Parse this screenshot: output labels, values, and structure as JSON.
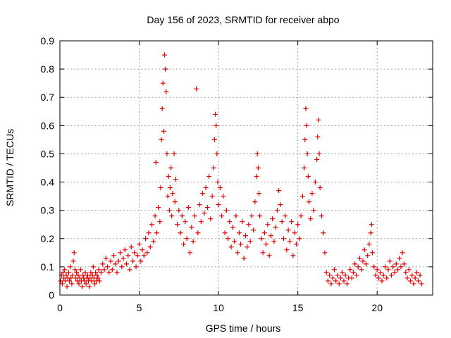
{
  "chart_data": {
    "type": "scatter",
    "title": "Day 156 of 2023, SRMTID for receiver abpo",
    "xlabel": "GPS time / hours",
    "ylabel": "SRMTID / TECUs",
    "xlim": [
      0,
      23.5
    ],
    "ylim": [
      0,
      0.9
    ],
    "xticks": [
      0,
      5,
      10,
      15,
      20
    ],
    "xtick_labels": [
      "0",
      "5",
      "10",
      "15",
      "20"
    ],
    "yticks": [
      0,
      0.1,
      0.2,
      0.3,
      0.4,
      0.5,
      0.6,
      0.7,
      0.8,
      0.9
    ],
    "ytick_labels": [
      "0",
      "0.1",
      "0.2",
      "0.3",
      "0.4",
      "0.5",
      "0.6",
      "0.7",
      "0.8",
      "0.9"
    ],
    "grid": true,
    "marker": "plus",
    "color": "#e00000",
    "series": [
      {
        "name": "SRMTID",
        "points": [
          [
            0.05,
            0.05
          ],
          [
            0.1,
            0.07
          ],
          [
            0.15,
            0.04
          ],
          [
            0.2,
            0.08
          ],
          [
            0.25,
            0.06
          ],
          [
            0.3,
            0.09
          ],
          [
            0.35,
            0.05
          ],
          [
            0.4,
            0.07
          ],
          [
            0.45,
            0.03
          ],
          [
            0.5,
            0.06
          ],
          [
            0.55,
            0.08
          ],
          [
            0.6,
            0.05
          ],
          [
            0.65,
            0.1
          ],
          [
            0.7,
            0.06
          ],
          [
            0.75,
            0.04
          ],
          [
            0.8,
            0.07
          ],
          [
            0.85,
            0.12
          ],
          [
            0.9,
            0.15
          ],
          [
            0.95,
            0.09
          ],
          [
            1.0,
            0.06
          ],
          [
            1.05,
            0.08
          ],
          [
            1.1,
            0.05
          ],
          [
            1.15,
            0.07
          ],
          [
            1.2,
            0.04
          ],
          [
            1.25,
            0.06
          ],
          [
            1.3,
            0.09
          ],
          [
            1.35,
            0.05
          ],
          [
            1.4,
            0.03
          ],
          [
            1.45,
            0.07
          ],
          [
            1.5,
            0.06
          ],
          [
            1.55,
            0.05
          ],
          [
            1.6,
            0.08
          ],
          [
            1.65,
            0.04
          ],
          [
            1.7,
            0.06
          ],
          [
            1.75,
            0.07
          ],
          [
            1.8,
            0.05
          ],
          [
            1.85,
            0.03
          ],
          [
            1.9,
            0.06
          ],
          [
            1.95,
            0.08
          ],
          [
            2.0,
            0.05
          ],
          [
            2.05,
            0.07
          ],
          [
            2.1,
            0.1
          ],
          [
            2.15,
            0.06
          ],
          [
            2.2,
            0.04
          ],
          [
            2.25,
            0.08
          ],
          [
            2.3,
            0.05
          ],
          [
            2.35,
            0.07
          ],
          [
            2.4,
            0.06
          ],
          [
            2.45,
            0.09
          ],
          [
            2.5,
            0.05
          ],
          [
            2.6,
            0.08
          ],
          [
            2.7,
            0.11
          ],
          [
            2.8,
            0.09
          ],
          [
            2.9,
            0.13
          ],
          [
            3.0,
            0.1
          ],
          [
            3.1,
            0.08
          ],
          [
            3.2,
            0.12
          ],
          [
            3.3,
            0.09
          ],
          [
            3.4,
            0.14
          ],
          [
            3.5,
            0.11
          ],
          [
            3.6,
            0.08
          ],
          [
            3.7,
            0.12
          ],
          [
            3.8,
            0.15
          ],
          [
            3.9,
            0.1
          ],
          [
            4.0,
            0.13
          ],
          [
            4.1,
            0.16
          ],
          [
            4.2,
            0.11
          ],
          [
            4.3,
            0.14
          ],
          [
            4.4,
            0.09
          ],
          [
            4.5,
            0.17
          ],
          [
            4.6,
            0.12
          ],
          [
            4.7,
            0.15
          ],
          [
            4.8,
            0.1
          ],
          [
            4.9,
            0.14
          ],
          [
            5.0,
            0.18
          ],
          [
            5.1,
            0.12
          ],
          [
            5.2,
            0.16
          ],
          [
            5.3,
            0.14
          ],
          [
            5.4,
            0.2
          ],
          [
            5.5,
            0.15
          ],
          [
            5.6,
            0.22
          ],
          [
            5.7,
            0.17
          ],
          [
            5.8,
            0.25
          ],
          [
            5.9,
            0.19
          ],
          [
            6.0,
            0.28
          ],
          [
            6.05,
            0.47
          ],
          [
            6.1,
            0.22
          ],
          [
            6.2,
            0.31
          ],
          [
            6.3,
            0.26
          ],
          [
            6.35,
            0.38
          ],
          [
            6.4,
            0.55
          ],
          [
            6.45,
            0.66
          ],
          [
            6.5,
            0.75
          ],
          [
            6.55,
            0.58
          ],
          [
            6.6,
            0.85
          ],
          [
            6.65,
            0.8
          ],
          [
            6.7,
            0.72
          ],
          [
            6.75,
            0.5
          ],
          [
            6.8,
            0.35
          ],
          [
            6.85,
            0.42
          ],
          [
            6.9,
            0.3
          ],
          [
            6.95,
            0.38
          ],
          [
            7.0,
            0.45
          ],
          [
            7.05,
            0.28
          ],
          [
            7.1,
            0.36
          ],
          [
            7.2,
            0.5
          ],
          [
            7.25,
            0.33
          ],
          [
            7.3,
            0.41
          ],
          [
            7.4,
            0.25
          ],
          [
            7.5,
            0.3
          ],
          [
            7.6,
            0.22
          ],
          [
            7.7,
            0.28
          ],
          [
            7.8,
            0.18
          ],
          [
            7.9,
            0.26
          ],
          [
            8.0,
            0.2
          ],
          [
            8.1,
            0.31
          ],
          [
            8.2,
            0.15
          ],
          [
            8.3,
            0.24
          ],
          [
            8.4,
            0.19
          ],
          [
            8.5,
            0.28
          ],
          [
            8.6,
            0.73
          ],
          [
            8.7,
            0.22
          ],
          [
            8.8,
            0.32
          ],
          [
            8.9,
            0.26
          ],
          [
            9.0,
            0.36
          ],
          [
            9.1,
            0.29
          ],
          [
            9.2,
            0.38
          ],
          [
            9.3,
            0.31
          ],
          [
            9.4,
            0.42
          ],
          [
            9.5,
            0.27
          ],
          [
            9.6,
            0.35
          ],
          [
            9.7,
            0.45
          ],
          [
            9.75,
            0.55
          ],
          [
            9.8,
            0.64
          ],
          [
            9.85,
            0.6
          ],
          [
            9.9,
            0.5
          ],
          [
            9.95,
            0.4
          ],
          [
            10.0,
            0.32
          ],
          [
            10.1,
            0.38
          ],
          [
            10.2,
            0.28
          ],
          [
            10.3,
            0.35
          ],
          [
            10.4,
            0.22
          ],
          [
            10.5,
            0.3
          ],
          [
            10.6,
            0.2
          ],
          [
            10.7,
            0.26
          ],
          [
            10.8,
            0.17
          ],
          [
            10.9,
            0.24
          ],
          [
            11.0,
            0.19
          ],
          [
            11.1,
            0.28
          ],
          [
            11.2,
            0.15
          ],
          [
            11.3,
            0.22
          ],
          [
            11.4,
            0.18
          ],
          [
            11.5,
            0.26
          ],
          [
            11.6,
            0.13
          ],
          [
            11.7,
            0.21
          ],
          [
            11.8,
            0.17
          ],
          [
            11.9,
            0.25
          ],
          [
            12.0,
            0.19
          ],
          [
            12.1,
            0.28
          ],
          [
            12.2,
            0.23
          ],
          [
            12.3,
            0.33
          ],
          [
            12.4,
            0.42
          ],
          [
            12.45,
            0.5
          ],
          [
            12.5,
            0.45
          ],
          [
            12.55,
            0.36
          ],
          [
            12.6,
            0.28
          ],
          [
            12.7,
            0.2
          ],
          [
            12.8,
            0.15
          ],
          [
            12.9,
            0.22
          ],
          [
            13.0,
            0.18
          ],
          [
            13.1,
            0.25
          ],
          [
            13.2,
            0.14
          ],
          [
            13.3,
            0.21
          ],
          [
            13.4,
            0.27
          ],
          [
            13.5,
            0.19
          ],
          [
            13.6,
            0.24
          ],
          [
            13.7,
            0.3
          ],
          [
            13.8,
            0.37
          ],
          [
            13.9,
            0.32
          ],
          [
            14.0,
            0.26
          ],
          [
            14.1,
            0.2
          ],
          [
            14.2,
            0.28
          ],
          [
            14.3,
            0.16
          ],
          [
            14.4,
            0.23
          ],
          [
            14.5,
            0.19
          ],
          [
            14.6,
            0.26
          ],
          [
            14.7,
            0.14
          ],
          [
            14.8,
            0.22
          ],
          [
            14.9,
            0.18
          ],
          [
            15.0,
            0.25
          ],
          [
            15.1,
            0.2
          ],
          [
            15.2,
            0.28
          ],
          [
            15.3,
            0.35
          ],
          [
            15.4,
            0.45
          ],
          [
            15.45,
            0.55
          ],
          [
            15.5,
            0.66
          ],
          [
            15.55,
            0.6
          ],
          [
            15.6,
            0.5
          ],
          [
            15.65,
            0.42
          ],
          [
            15.7,
            0.33
          ],
          [
            15.8,
            0.27
          ],
          [
            15.9,
            0.36
          ],
          [
            16.0,
            0.3
          ],
          [
            16.1,
            0.4
          ],
          [
            16.2,
            0.48
          ],
          [
            16.25,
            0.56
          ],
          [
            16.3,
            0.62
          ],
          [
            16.35,
            0.5
          ],
          [
            16.4,
            0.38
          ],
          [
            16.5,
            0.28
          ],
          [
            16.6,
            0.22
          ],
          [
            16.7,
            0.15
          ],
          [
            16.8,
            0.08
          ],
          [
            16.9,
            0.05
          ],
          [
            17.0,
            0.07
          ],
          [
            17.1,
            0.04
          ],
          [
            17.2,
            0.06
          ],
          [
            17.3,
            0.09
          ],
          [
            17.4,
            0.05
          ],
          [
            17.5,
            0.07
          ],
          [
            17.6,
            0.04
          ],
          [
            17.7,
            0.06
          ],
          [
            17.8,
            0.08
          ],
          [
            17.9,
            0.05
          ],
          [
            18.0,
            0.07
          ],
          [
            18.1,
            0.04
          ],
          [
            18.2,
            0.06
          ],
          [
            18.3,
            0.09
          ],
          [
            18.4,
            0.06
          ],
          [
            18.5,
            0.08
          ],
          [
            18.6,
            0.11
          ],
          [
            18.7,
            0.07
          ],
          [
            18.8,
            0.1
          ],
          [
            18.9,
            0.13
          ],
          [
            19.0,
            0.09
          ],
          [
            19.1,
            0.12
          ],
          [
            19.2,
            0.16
          ],
          [
            19.3,
            0.11
          ],
          [
            19.4,
            0.14
          ],
          [
            19.5,
            0.18
          ],
          [
            19.6,
            0.22
          ],
          [
            19.65,
            0.25
          ],
          [
            19.7,
            0.15
          ],
          [
            19.8,
            0.1
          ],
          [
            19.9,
            0.07
          ],
          [
            20.0,
            0.09
          ],
          [
            20.1,
            0.06
          ],
          [
            20.2,
            0.08
          ],
          [
            20.3,
            0.05
          ],
          [
            20.4,
            0.07
          ],
          [
            20.5,
            0.1
          ],
          [
            20.6,
            0.06
          ],
          [
            20.7,
            0.09
          ],
          [
            20.8,
            0.12
          ],
          [
            20.9,
            0.07
          ],
          [
            21.0,
            0.1
          ],
          [
            21.1,
            0.08
          ],
          [
            21.2,
            0.11
          ],
          [
            21.3,
            0.09
          ],
          [
            21.4,
            0.13
          ],
          [
            21.5,
            0.1
          ],
          [
            21.6,
            0.15
          ],
          [
            21.7,
            0.11
          ],
          [
            21.8,
            0.08
          ],
          [
            21.9,
            0.06
          ],
          [
            22.0,
            0.09
          ],
          [
            22.1,
            0.05
          ],
          [
            22.2,
            0.07
          ],
          [
            22.3,
            0.04
          ],
          [
            22.4,
            0.06
          ],
          [
            22.5,
            0.08
          ],
          [
            22.6,
            0.05
          ],
          [
            22.7,
            0.07
          ],
          [
            22.8,
            0.04
          ]
        ]
      }
    ]
  }
}
